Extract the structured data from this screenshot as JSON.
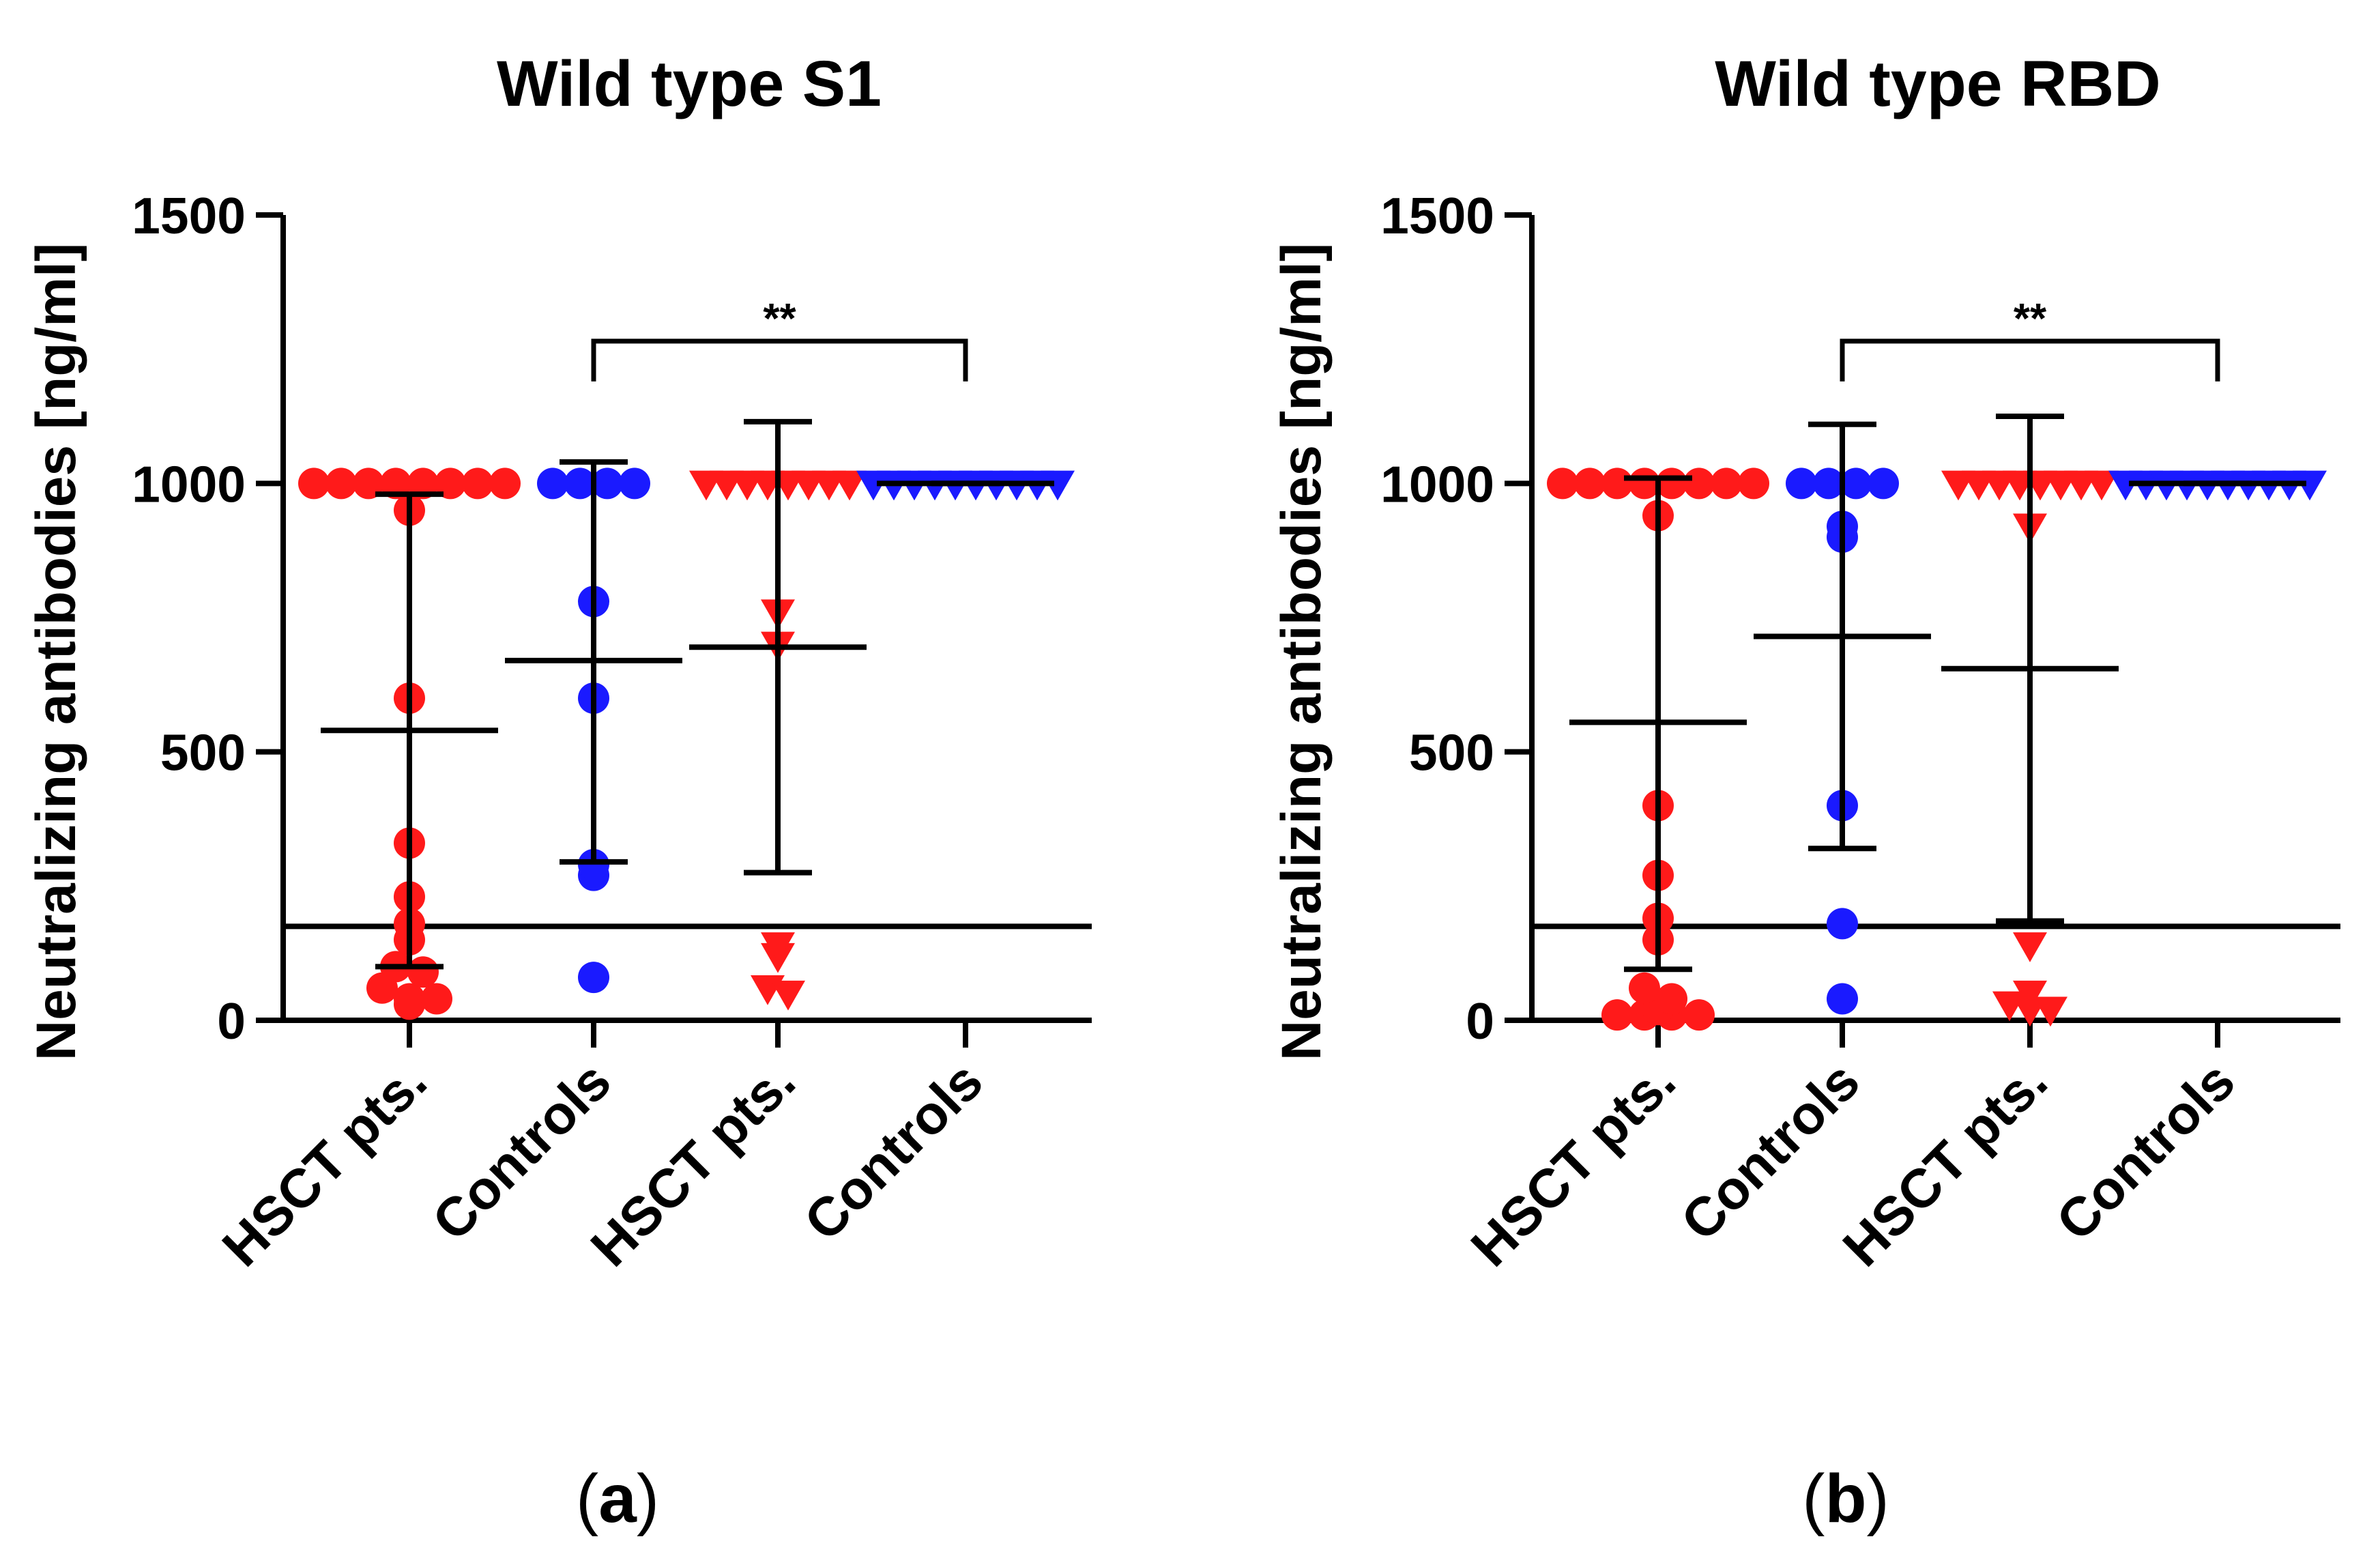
{
  "chart_data": [
    {
      "panel": "a",
      "type": "scatter",
      "title": "Wild type S1",
      "ylabel": "Neutralizing antibodies [ng/ml]",
      "ylim": [
        0,
        1500
      ],
      "yticks": [
        0,
        500,
        1000,
        1500
      ],
      "categories": [
        "HSCT pts.",
        "Controls",
        "HSCT pts.",
        "Controls"
      ],
      "threshold": 175,
      "significance": {
        "from": 1,
        "to": 3,
        "label": "**"
      },
      "series": [
        {
          "name": "HSCT pts.",
          "marker": "circle",
          "color": "#ff1a1a",
          "values": [
            1000,
            1000,
            1000,
            1000,
            1000,
            1000,
            1000,
            1000,
            950,
            600,
            330,
            230,
            180,
            150,
            100,
            90,
            60,
            40,
            40,
            30
          ],
          "mean": 540,
          "sd_low": 100,
          "sd_high": 980
        },
        {
          "name": "Controls",
          "marker": "circle",
          "color": "#1a1aff",
          "values": [
            1000,
            1000,
            1000,
            1000,
            780,
            600,
            290,
            270,
            80
          ],
          "mean": 670,
          "sd_low": 295,
          "sd_high": 1040
        },
        {
          "name": "HSCT pts.",
          "marker": "triangle-down",
          "color": "#ff1a1a",
          "values": [
            1000,
            1000,
            1000,
            1000,
            1000,
            1000,
            1000,
            1000,
            760,
            700,
            140,
            120,
            60,
            50
          ],
          "mean": 695,
          "sd_low": 275,
          "sd_high": 1115
        },
        {
          "name": "Controls",
          "marker": "triangle-down",
          "color": "#1a1aff",
          "values": [
            1000,
            1000,
            1000,
            1000,
            1000,
            1000,
            1000,
            1000,
            1000,
            1000
          ],
          "mean": 1000,
          "sd_low": 1000,
          "sd_high": 1000
        }
      ]
    },
    {
      "panel": "b",
      "type": "scatter",
      "title": "Wild type RBD",
      "ylabel": "Neutralizing antibodies [ng/ml]",
      "ylim": [
        0,
        1500
      ],
      "yticks": [
        0,
        500,
        1000,
        1500
      ],
      "categories": [
        "HSCT pts.",
        "Controls",
        "HSCT pts.",
        "Controls"
      ],
      "threshold": 175,
      "significance": {
        "from": 1,
        "to": 3,
        "label": "**"
      },
      "series": [
        {
          "name": "HSCT pts.",
          "marker": "circle",
          "color": "#ff1a1a",
          "values": [
            1000,
            1000,
            1000,
            1000,
            1000,
            1000,
            1000,
            1000,
            940,
            400,
            270,
            190,
            150,
            60,
            40,
            20,
            10,
            10,
            10,
            10
          ],
          "mean": 555,
          "sd_low": 95,
          "sd_high": 1010
        },
        {
          "name": "Controls",
          "marker": "circle",
          "color": "#1a1aff",
          "values": [
            1000,
            1000,
            1000,
            1000,
            920,
            900,
            400,
            180,
            40
          ],
          "mean": 715,
          "sd_low": 320,
          "sd_high": 1110
        },
        {
          "name": "HSCT pts.",
          "marker": "triangle-down",
          "color": "#ff1a1a",
          "values": [
            1000,
            1000,
            1000,
            1000,
            1000,
            1000,
            1000,
            1000,
            920,
            140,
            50,
            30,
            20,
            20
          ],
          "mean": 655,
          "sd_low": 185,
          "sd_high": 1125
        },
        {
          "name": "Controls",
          "marker": "triangle-down",
          "color": "#1a1aff",
          "values": [
            1000,
            1000,
            1000,
            1000,
            1000,
            1000,
            1000,
            1000,
            1000,
            1000
          ],
          "mean": 1000,
          "sd_low": 1000,
          "sd_high": 1000
        }
      ]
    }
  ],
  "panel_labels": [
    "a",
    "b"
  ]
}
